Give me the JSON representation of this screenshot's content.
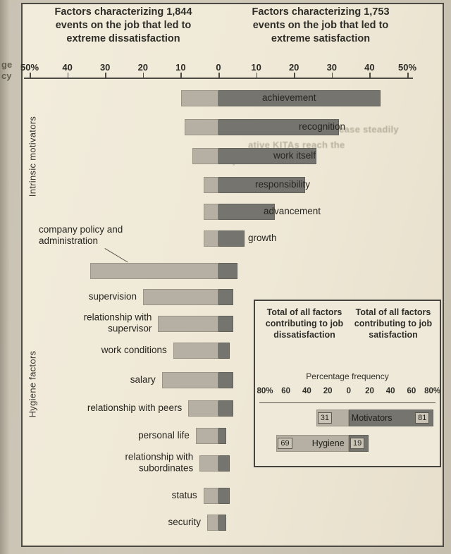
{
  "page": {
    "edge_fragments": [
      "ge",
      "cy"
    ],
    "bleedthrough_fragments": [
      "will increase steadily",
      "ative KITAs reach the",
      "point"
    ]
  },
  "headers": {
    "dissatisfaction": "Factors characterizing 1,844 events on the job that led to extreme dissatisfaction",
    "satisfaction": "Factors characterizing 1,753 events on the job that led to extreme satisfaction"
  },
  "side_labels": {
    "top": "Intrinsic motivators",
    "bottom": "Hygiene factors"
  },
  "chart_data": {
    "type": "bar",
    "orientation": "horizontal-diverging",
    "units": "percentage frequency",
    "axis_ticks": [
      "50%",
      "40",
      "30",
      "20",
      "10",
      "0",
      "10",
      "20",
      "30",
      "40",
      "50%"
    ],
    "axis_max": 50,
    "grid": false,
    "categories": [
      "achievement",
      "recognition",
      "work itself",
      "responsibility",
      "advancement",
      "growth",
      "company policy and administration",
      "supervision",
      "relationship with supervisor",
      "work conditions",
      "salary",
      "relationship with peers",
      "personal life",
      "relationship with subordinates",
      "status",
      "security"
    ],
    "series": [
      {
        "name": "dissatisfaction",
        "side": "left",
        "color": "#b5b0a3",
        "values": [
          10,
          9,
          7,
          4,
          4,
          4,
          34,
          20,
          16,
          12,
          15,
          8,
          6,
          5,
          4,
          3
        ]
      },
      {
        "name": "satisfaction",
        "side": "right",
        "color": "#76746e",
        "values": [
          43,
          32,
          26,
          23,
          15,
          7,
          5,
          4,
          4,
          3,
          4,
          4,
          2,
          3,
          3,
          2
        ]
      }
    ],
    "groups": [
      {
        "label": "Intrinsic motivators",
        "from_index": 0,
        "to_index": 5
      },
      {
        "label": "Hygiene factors",
        "from_index": 6,
        "to_index": 15
      }
    ],
    "inset": {
      "header_left": "Total of all factors contributing to job dissatisfaction",
      "header_right": "Total of all factors contributing to job satisfaction",
      "subtitle": "Percentage frequency",
      "axis_ticks": [
        "80%",
        "60",
        "40",
        "20",
        "0",
        "20",
        "40",
        "60",
        "80%"
      ],
      "axis_max": 80,
      "rows": [
        {
          "label": "Motivators",
          "dissatisfaction": 31,
          "satisfaction": 81,
          "label_on": "satisfaction"
        },
        {
          "label": "Hygiene",
          "dissatisfaction": 69,
          "satisfaction": 19,
          "label_on": "dissatisfaction"
        }
      ]
    }
  }
}
